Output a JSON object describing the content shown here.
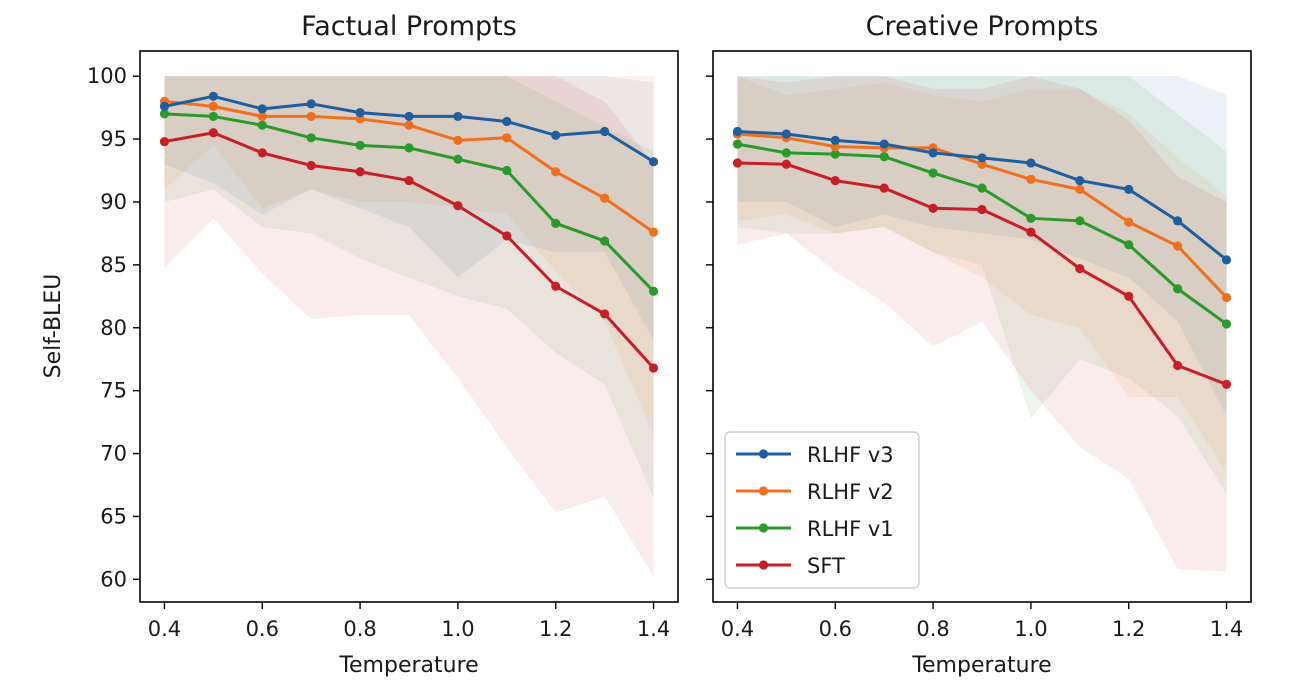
{
  "figure": {
    "y_axis_label": "Self-BLEU"
  },
  "chart_data": [
    {
      "type": "line",
      "title": "Factual Prompts",
      "xlabel": "Temperature",
      "ylabel": "Self-BLEU",
      "xlim": [
        0.35,
        1.45
      ],
      "ylim": [
        58.2,
        102
      ],
      "xticks": [
        0.4,
        0.6,
        0.8,
        1.0,
        1.2,
        1.4
      ],
      "xtick_labels": [
        "0.4",
        "0.6",
        "0.8",
        "1.0",
        "1.2",
        "1.4"
      ],
      "yticks": [
        60,
        65,
        70,
        75,
        80,
        85,
        90,
        95,
        100
      ],
      "ytick_labels": [
        "60",
        "65",
        "70",
        "75",
        "80",
        "85",
        "90",
        "95",
        "100"
      ],
      "x": [
        0.4,
        0.5,
        0.6,
        0.7,
        0.8,
        0.9,
        1.0,
        1.1,
        1.2,
        1.3,
        1.4
      ],
      "legend_visible": false,
      "series": [
        {
          "name": "RLHF v3",
          "color": "#1f5fa0",
          "values": [
            97.6,
            98.4,
            97.4,
            97.8,
            97.1,
            96.8,
            96.8,
            96.4,
            95.3,
            95.6,
            93.2
          ],
          "upper": [
            100,
            100,
            100,
            100,
            100,
            100,
            100,
            100,
            100,
            100,
            99.5
          ],
          "lower": [
            93.0,
            91.5,
            89.0,
            91.0,
            89.5,
            88.0,
            84.0,
            87.0,
            86.0,
            86.0,
            79.0
          ]
        },
        {
          "name": "RLHF v2",
          "color": "#f07020",
          "values": [
            98.0,
            97.6,
            96.8,
            96.8,
            96.6,
            96.1,
            94.9,
            95.1,
            92.4,
            90.3,
            87.6
          ],
          "upper": [
            100,
            100,
            100,
            100,
            100,
            100,
            100,
            100,
            100,
            100,
            100
          ],
          "lower": [
            91.0,
            94.5,
            89.5,
            91.0,
            90.0,
            90.0,
            89.5,
            89.0,
            84.5,
            80.5,
            71.5
          ]
        },
        {
          "name": "RLHF v1",
          "color": "#2a9a2a",
          "values": [
            97.0,
            96.8,
            96.1,
            95.1,
            94.5,
            94.3,
            93.4,
            92.5,
            88.3,
            86.9,
            82.9
          ],
          "upper": [
            100,
            100,
            100,
            100,
            100,
            100,
            100,
            100,
            98.0,
            96.0,
            94.0
          ],
          "lower": [
            90.0,
            91.0,
            88.0,
            87.5,
            85.5,
            84.0,
            82.5,
            81.5,
            78.0,
            75.5,
            66.5
          ]
        },
        {
          "name": "SFT",
          "color": "#c81e28",
          "values": [
            94.8,
            95.5,
            93.9,
            92.9,
            92.4,
            91.7,
            89.7,
            87.3,
            83.3,
            81.1,
            76.8
          ],
          "upper": [
            100,
            100,
            100,
            100,
            100,
            100,
            100,
            100,
            100,
            98.0,
            93.0
          ],
          "lower": [
            84.8,
            88.7,
            84.3,
            80.7,
            81.0,
            81.0,
            76.0,
            70.5,
            65.3,
            66.6,
            60.2
          ]
        }
      ]
    },
    {
      "type": "line",
      "title": "Creative Prompts",
      "xlabel": "Temperature",
      "ylabel": "",
      "xlim": [
        0.35,
        1.45
      ],
      "ylim": [
        58.2,
        102
      ],
      "xticks": [
        0.4,
        0.6,
        0.8,
        1.0,
        1.2,
        1.4
      ],
      "xtick_labels": [
        "0.4",
        "0.6",
        "0.8",
        "1.0",
        "1.2",
        "1.4"
      ],
      "yticks": [
        60,
        65,
        70,
        75,
        80,
        85,
        90,
        95,
        100
      ],
      "x": [
        0.4,
        0.5,
        0.6,
        0.7,
        0.8,
        0.9,
        1.0,
        1.1,
        1.2,
        1.3,
        1.4
      ],
      "legend_visible": true,
      "legend_position": "lower-left",
      "series": [
        {
          "name": "RLHF v3",
          "color": "#1f5fa0",
          "values": [
            95.6,
            95.4,
            94.9,
            94.6,
            93.9,
            93.5,
            93.1,
            91.7,
            91.0,
            88.5,
            85.4
          ],
          "upper": [
            100,
            100,
            100,
            100,
            100,
            100,
            100,
            100,
            100,
            100,
            98.5
          ],
          "lower": [
            90.0,
            90.0,
            88.0,
            89.0,
            88.0,
            87.5,
            87.0,
            85.5,
            84.0,
            80.5,
            73.0
          ]
        },
        {
          "name": "RLHF v2",
          "color": "#f07020",
          "values": [
            95.4,
            95.1,
            94.4,
            94.3,
            94.3,
            93.0,
            91.8,
            91.0,
            88.4,
            86.5,
            82.4
          ],
          "upper": [
            100,
            98.5,
            99.0,
            99.5,
            98.5,
            98.0,
            99.0,
            99.0,
            97.0,
            93.5,
            90.5
          ],
          "lower": [
            88.5,
            89.0,
            87.5,
            88.0,
            86.0,
            84.0,
            81.0,
            80.0,
            74.5,
            74.5,
            68.5
          ]
        },
        {
          "name": "RLHF v1",
          "color": "#2a9a2a",
          "values": [
            94.6,
            93.9,
            93.8,
            93.6,
            92.3,
            91.1,
            88.7,
            88.5,
            86.6,
            83.1,
            80.3
          ],
          "upper": [
            100,
            100,
            100,
            100,
            100,
            100,
            100,
            100,
            100,
            97.0,
            94.0
          ],
          "lower": [
            88.0,
            87.5,
            87.5,
            88.0,
            86.0,
            85.0,
            72.8,
            77.5,
            76.0,
            73.0,
            66.8
          ]
        },
        {
          "name": "SFT",
          "color": "#c81e28",
          "values": [
            93.1,
            93.0,
            91.7,
            91.1,
            89.5,
            89.4,
            87.6,
            84.7,
            82.5,
            77.0,
            75.5
          ],
          "upper": [
            100,
            99.5,
            100,
            100,
            99.0,
            99.0,
            100,
            99.0,
            96.5,
            92.0,
            90.0
          ],
          "lower": [
            86.6,
            87.5,
            84.5,
            82.0,
            78.5,
            80.5,
            75.0,
            70.5,
            68.0,
            60.8,
            60.6
          ]
        }
      ]
    }
  ]
}
